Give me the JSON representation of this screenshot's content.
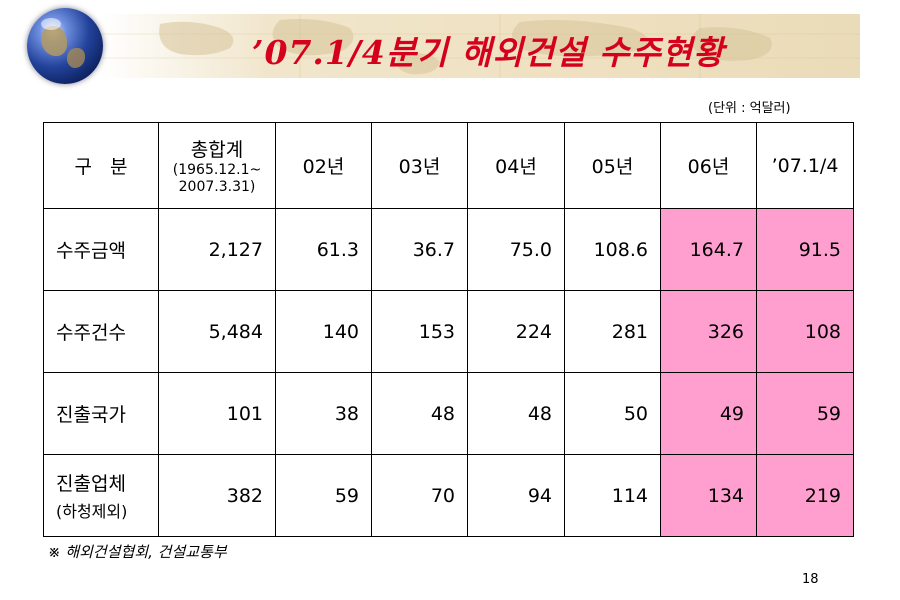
{
  "header": {
    "title": "’07.1/4분기 해외건설 수주현황",
    "unit": "(단위 : 억달러)"
  },
  "table": {
    "corner": "구   분",
    "total_header": "총합계",
    "total_period": "(1965.12.1~ 2007.3.31)",
    "columns": [
      "02년",
      "03년",
      "04년",
      "05년",
      "06년",
      "’07.1/4"
    ],
    "rows": [
      {
        "label": "수주금액",
        "total": "2,127",
        "values": [
          "61.3",
          "36.7",
          "75.0",
          "108.6",
          "164.7",
          "91.5"
        ]
      },
      {
        "label": "수주건수",
        "total": "5,484",
        "values": [
          "140",
          "153",
          "224",
          "281",
          "326",
          "108"
        ]
      },
      {
        "label": "진출국가",
        "total": "101",
        "values": [
          "38",
          "48",
          "48",
          "50",
          "49",
          "59"
        ]
      },
      {
        "label": "진출업체",
        "label_sub": "(하청제외)",
        "total": "382",
        "values": [
          "59",
          "70",
          "94",
          "114",
          "134",
          "219"
        ]
      }
    ],
    "highlight_color": "#ff9fcf"
  },
  "footer": {
    "source": "※ 해외건설협회, 건설교통부",
    "page_number": "18"
  },
  "icons": {
    "logo": "globe-icon"
  },
  "colors": {
    "title": "#d4001c"
  }
}
